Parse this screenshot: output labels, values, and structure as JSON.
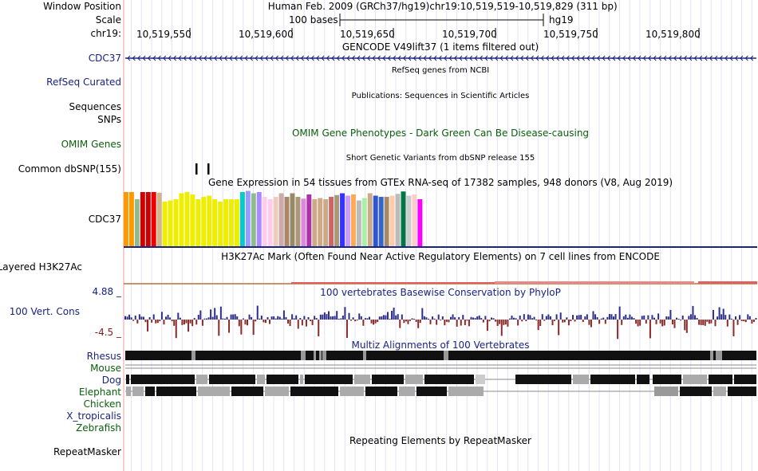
{
  "header": {
    "window_position_label": "Window Position",
    "scale_label": "Scale",
    "chrom_label": "chr19:",
    "assembly": "Human Feb. 2009 (GRCh37/hg19)",
    "position": "chr19:10,519,519-10,519,829 (311 bp)",
    "scale_text": "100 bases",
    "db": "hg19",
    "ruler_ticks": [
      "10,519,550",
      "10,519,600",
      "10,519,650",
      "10,519,700",
      "10,519,750",
      "10,519,800"
    ]
  },
  "tracks": {
    "gencode": {
      "title": "GENCODE V49lift37 (1 items filtered out)",
      "label": "CDC37"
    },
    "refseq": {
      "title": "RefSeq genes from NCBI",
      "label": "RefSeq Curated"
    },
    "publications": {
      "title": "Publications: Sequences in Scientific Articles",
      "label1": "Sequences",
      "label2": "SNPs"
    },
    "omim": {
      "title": "OMIM Gene Phenotypes - Dark Green Can Be Disease-causing",
      "label": "OMIM Genes"
    },
    "dbsnp": {
      "title": "Short Genetic Variants from dbSNP release 155",
      "label": "Common dbSNP(155)"
    },
    "gtex": {
      "title": "Gene Expression in 54 tissues from GTEx RNA-seq of 17382 samples, 948 donors (V8, Aug 2019)",
      "label": "CDC37",
      "tissue_colors": [
        "#ff9900",
        "#ff9900",
        "#8fbc8f",
        "#cc0000",
        "#cc0000",
        "#ee0000",
        "#d2b48c",
        "#eeee00",
        "#eeee00",
        "#eeee00",
        "#eeee00",
        "#eeee00",
        "#eeee00",
        "#eeee00",
        "#eeee00",
        "#eeee00",
        "#eeee00",
        "#eeee00",
        "#eeee00",
        "#eeee00",
        "#eeee00",
        "#00cccc",
        "#9999ff",
        "#8fbc8f",
        "#aa88ff",
        "#ffccee",
        "#ffccee",
        "#eeccbb",
        "#ccaaaa",
        "#aa8866",
        "#998866",
        "#aa9977",
        "#dd88dd",
        "#aa33aa",
        "#ccaa88",
        "#ccaa88",
        "#ccaa88",
        "#cc6666",
        "#aa9977",
        "#3333ff",
        "#cc99ff",
        "#ffaa55",
        "#bbbbbb",
        "#aaeeaa",
        "#ccaa88",
        "#3355cc",
        "#3366cc",
        "#aa8866",
        "#ffccaa",
        "#bbbbbb",
        "#007744",
        "#cccccc",
        "#ffcccc",
        "#ff00ff"
      ],
      "tissue_values": [
        92,
        92,
        80,
        92,
        92,
        92,
        91,
        76,
        78,
        80,
        90,
        92,
        88,
        80,
        84,
        86,
        80,
        76,
        80,
        80,
        80,
        92,
        94,
        90,
        92,
        84,
        80,
        84,
        90,
        84,
        90,
        84,
        81,
        88,
        80,
        82,
        80,
        84,
        87,
        90,
        86,
        88,
        78,
        82,
        90,
        86,
        84,
        84,
        86,
        89,
        93,
        86,
        88,
        80
      ]
    },
    "h3k27ac": {
      "title": "H3K27Ac Mark (Often Found Near Active Regulatory Elements) on 7 cell lines from ENCODE",
      "label": "Layered H3K27Ac"
    },
    "phylop": {
      "title": "100 vertebrates Basewise Conservation by PhyloP",
      "label": "100 Vert. Cons",
      "max_label": "4.88 _",
      "min_label": "-4.5 _"
    },
    "multiz": {
      "title": "Multiz Alignments of 100 Vertebrates",
      "species": [
        {
          "name": "Rhesus",
          "color": "#1a237e"
        },
        {
          "name": "Mouse",
          "color": "#0b5e0b"
        },
        {
          "name": "Dog",
          "color": "#1a237e"
        },
        {
          "name": "Elephant",
          "color": "#0b5e0b"
        },
        {
          "name": "Chicken",
          "color": "#0b5e0b"
        },
        {
          "name": "X_tropicalis",
          "color": "#1a237e"
        },
        {
          "name": "Zebrafish",
          "color": "#0b5e0b"
        }
      ]
    },
    "repeatmasker": {
      "title": "Repeating Elements by RepeatMasker",
      "label": "RepeatMasker"
    }
  }
}
